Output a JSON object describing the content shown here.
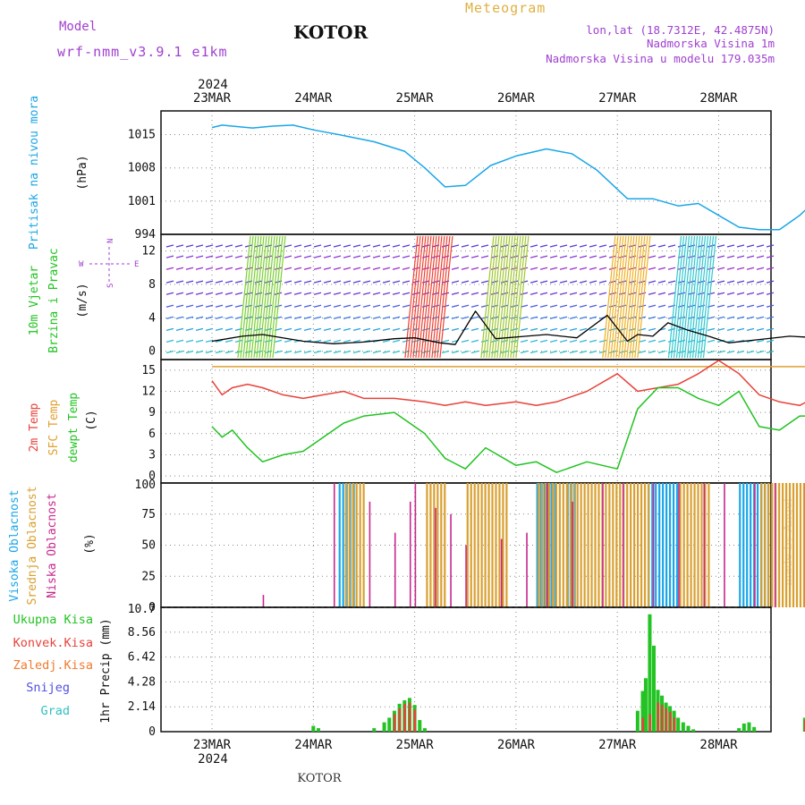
{
  "header": {
    "model_label": "Model",
    "model_name": "wrf-nmm_v3.9.1 e1km",
    "station": "KOTOR",
    "chart_type_label": "Meteogram",
    "lonlat": "lon,lat (18.7312E, 42.4875N)",
    "elevation": "Nadmorska Visina 1m",
    "model_elevation": "Nadmorska Visina u modelu 179.035m",
    "watermark": "made by Angel",
    "footer_station": "KOTOR"
  },
  "time_axis": {
    "year": "2024",
    "dates": [
      "23MAR",
      "24MAR",
      "25MAR",
      "26MAR",
      "27MAR",
      "28MAR"
    ]
  },
  "colors": {
    "pressure": "#1aa6e8",
    "temp2m": "#e8423a",
    "sfc_temp": "#e0a030",
    "dewpoint": "#22c322",
    "total_precip": "#22c322",
    "convective_precip": "#e8423a",
    "freezing_precip": "#f07a30",
    "snow": "#5050e0",
    "graupel": "#30c0c0",
    "high_cloud": "#1aa6e8",
    "mid_cloud": "#d9a030",
    "low_cloud": "#c8288c",
    "wind_line": "#000000",
    "wind_gust_marks": "#e8423a",
    "header_purple": "#a040d0",
    "header_gold": "#e0b040"
  },
  "chart_data": [
    {
      "type": "line",
      "panel": "pressure",
      "ylabel": "Pritisak na nivou mora",
      "yunit": "(hPa)",
      "yticks": [
        "994",
        "1001",
        "1008",
        "1015"
      ],
      "ylim": [
        994,
        1020
      ],
      "x_days": [
        0,
        0.1,
        0.2,
        0.4,
        0.6,
        0.8,
        1.0,
        1.3,
        1.6,
        1.9,
        2.1,
        2.3,
        2.5,
        2.75,
        3.0,
        3.3,
        3.55,
        3.8,
        4.0,
        4.1,
        4.35,
        4.6,
        4.8,
        5.0,
        5.2,
        5.4,
        5.6,
        5.8,
        6.0
      ],
      "series": [
        {
          "values": [
            1016.5,
            1017.0,
            1016.8,
            1016.4,
            1016.8,
            1017.0,
            1016.0,
            1014.8,
            1013.5,
            1011.5,
            1008.0,
            1004.0,
            1004.3,
            1008.5,
            1010.5,
            1012.0,
            1011.0,
            1007.5,
            1003.5,
            1001.5,
            1001.5,
            1000.0,
            1000.5,
            998.0,
            995.5,
            995.0,
            995.0,
            998.0,
            1002.0
          ]
        }
      ]
    },
    {
      "type": "line",
      "panel": "wind",
      "ylabel": "10m Vjetar",
      "ylabel2": "Brzina i Pravac",
      "yunit": "(m/s)",
      "compass_n": "N",
      "compass_s": "S",
      "compass_w": "W",
      "compass_e": "E",
      "yticks": [
        "0",
        "4",
        "8",
        "12"
      ],
      "ylim": [
        -1,
        14
      ],
      "x_days": [
        0,
        0.3,
        0.5,
        0.9,
        1.2,
        1.5,
        1.8,
        2.0,
        2.25,
        2.4,
        2.6,
        2.8,
        3.1,
        3.3,
        3.6,
        3.9,
        4.1,
        4.2,
        4.35,
        4.5,
        4.7,
        4.9,
        5.1,
        5.4,
        5.7,
        6.0
      ],
      "series": [
        {
          "name": "speed",
          "values": [
            1.2,
            1.8,
            2.0,
            1.2,
            0.9,
            1.1,
            1.5,
            1.6,
            1.0,
            0.8,
            4.8,
            1.5,
            1.8,
            2.0,
            1.6,
            4.3,
            1.2,
            2.0,
            1.8,
            3.4,
            2.5,
            1.8,
            1.0,
            1.4,
            1.8,
            1.6
          ]
        }
      ]
    },
    {
      "type": "line",
      "panel": "temperature",
      "ylabel": "2m Temp",
      "ylabel2": "SFC Temp",
      "ylabel3": "dewpt Temp",
      "yunit": "(C)",
      "yticks": [
        "0",
        "3",
        "6",
        "9",
        "12",
        "15"
      ],
      "ylim": [
        -1,
        16.5
      ],
      "x_days": [
        0,
        0.1,
        0.2,
        0.35,
        0.5,
        0.7,
        0.9,
        1.1,
        1.3,
        1.5,
        1.8,
        2.1,
        2.3,
        2.5,
        2.7,
        3.0,
        3.2,
        3.4,
        3.7,
        4.0,
        4.2,
        4.4,
        4.6,
        4.8,
        5.0,
        5.2,
        5.4,
        5.6,
        5.8,
        6.0
      ],
      "series": [
        {
          "name": "2m Temp",
          "values": [
            13.5,
            11.5,
            12.5,
            13.0,
            12.5,
            11.5,
            11.0,
            11.5,
            12.0,
            11.0,
            11.0,
            10.5,
            10.0,
            10.5,
            10.0,
            10.5,
            10.0,
            10.5,
            12.0,
            14.5,
            12.0,
            12.5,
            13.0,
            14.5,
            17.0,
            14.5,
            11.5,
            10.5,
            10.0,
            11.5
          ]
        },
        {
          "name": "SFC Temp",
          "values": [
            15.5,
            15.5,
            15.5,
            15.5,
            15.5,
            15.5,
            15.5,
            15.5,
            15.5,
            15.5,
            15.5,
            15.5,
            15.5,
            15.5,
            15.5,
            15.5,
            15.5,
            15.5,
            15.5,
            15.5,
            15.5,
            15.5,
            15.5,
            15.5,
            15.5,
            15.5,
            15.5,
            15.5,
            15.5,
            15.5
          ]
        },
        {
          "name": "dewpt Temp",
          "values": [
            7.0,
            5.5,
            6.5,
            4.0,
            2.0,
            3.0,
            3.5,
            5.5,
            7.5,
            8.5,
            9.0,
            6.0,
            2.5,
            1.0,
            4.0,
            1.5,
            2.0,
            0.5,
            2.0,
            1.0,
            9.5,
            12.5,
            12.5,
            11.0,
            10.0,
            12.0,
            7.0,
            6.5,
            8.5,
            8.5
          ]
        }
      ]
    },
    {
      "type": "bar",
      "panel": "cloud",
      "ylabel": "Visoka Oblacnost",
      "ylabel2": "Srednja Oblacnost",
      "ylabel3": "Niska Oblacnost",
      "yunit": "(%)",
      "yticks": [
        "0",
        "25",
        "50",
        "75",
        "100"
      ],
      "ylim": [
        0,
        100
      ],
      "high_cloud_segments_days": [
        [
          1.25,
          1.4
        ],
        [
          3.2,
          3.4
        ],
        [
          3.5,
          3.6
        ],
        [
          4.3,
          4.6
        ],
        [
          5.2,
          5.5
        ]
      ],
      "mid_cloud_segments_days": [
        [
          1.3,
          1.5
        ],
        [
          2.1,
          2.3
        ],
        [
          2.5,
          2.9
        ],
        [
          3.2,
          4.3
        ],
        [
          4.6,
          4.9
        ],
        [
          5.4,
          6.0
        ]
      ],
      "low_cloud_spikes": [
        [
          0.5,
          10
        ],
        [
          1.2,
          100
        ],
        [
          1.55,
          85
        ],
        [
          1.8,
          60
        ],
        [
          1.95,
          85
        ],
        [
          2.0,
          100
        ],
        [
          2.2,
          80
        ],
        [
          2.35,
          75
        ],
        [
          2.5,
          50
        ],
        [
          2.85,
          55
        ],
        [
          3.1,
          60
        ],
        [
          3.3,
          100
        ],
        [
          3.55,
          85
        ],
        [
          3.85,
          100
        ],
        [
          4.05,
          100
        ],
        [
          4.35,
          100
        ],
        [
          4.6,
          100
        ],
        [
          4.85,
          100
        ],
        [
          5.05,
          100
        ],
        [
          5.35,
          100
        ],
        [
          5.55,
          100
        ],
        [
          5.85,
          100
        ]
      ]
    },
    {
      "type": "bar",
      "panel": "precip",
      "ylabel": "1hr Precip",
      "yunit": "(mm)",
      "legend": [
        "Ukupna Kisa",
        "Konvek.Kisa",
        "Zaledj.Kisa",
        "Snijeg",
        "Grad"
      ],
      "yticks": [
        "0",
        "2.14",
        "4.28",
        "6.42",
        "8.56",
        "10.7"
      ],
      "ylim": [
        0,
        10.7
      ],
      "total": [
        [
          1.0,
          0.5
        ],
        [
          1.05,
          0.3
        ],
        [
          1.6,
          0.3
        ],
        [
          1.7,
          0.8
        ],
        [
          1.75,
          1.2
        ],
        [
          1.8,
          1.8
        ],
        [
          1.85,
          2.4
        ],
        [
          1.9,
          2.7
        ],
        [
          1.95,
          2.9
        ],
        [
          2.0,
          2.3
        ],
        [
          2.05,
          1.0
        ],
        [
          2.1,
          0.3
        ],
        [
          4.2,
          1.8
        ],
        [
          4.25,
          3.5
        ],
        [
          4.28,
          4.6
        ],
        [
          4.32,
          10.1
        ],
        [
          4.36,
          7.4
        ],
        [
          4.4,
          3.6
        ],
        [
          4.44,
          3.1
        ],
        [
          4.48,
          2.5
        ],
        [
          4.52,
          2.2
        ],
        [
          4.56,
          1.8
        ],
        [
          4.6,
          1.2
        ],
        [
          4.65,
          0.8
        ],
        [
          4.7,
          0.5
        ],
        [
          4.75,
          0.2
        ],
        [
          5.2,
          0.3
        ],
        [
          5.25,
          0.7
        ],
        [
          5.3,
          0.8
        ],
        [
          5.35,
          0.4
        ],
        [
          5.85,
          1.2
        ]
      ],
      "convective": [
        [
          1.8,
          1.5
        ],
        [
          1.85,
          2.0
        ],
        [
          1.9,
          2.4
        ],
        [
          1.95,
          2.5
        ],
        [
          2.0,
          1.9
        ],
        [
          4.25,
          1.2
        ],
        [
          4.32,
          1.5
        ],
        [
          4.4,
          2.5
        ],
        [
          4.44,
          2.3
        ],
        [
          4.48,
          2.0
        ],
        [
          4.52,
          1.7
        ],
        [
          4.56,
          1.2
        ],
        [
          5.85,
          1.0
        ]
      ]
    }
  ]
}
